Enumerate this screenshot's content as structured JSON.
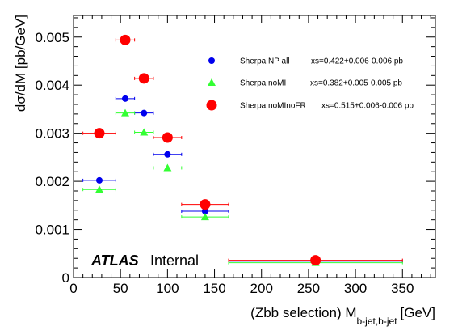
{
  "chart_data": {
    "type": "scatter",
    "xlabel": "(Zbb selection) M",
    "xlabel_sub": "b-jet,b-jet",
    "xlabel_unit": "[GeV]",
    "ylabel": "dσ/dM [pb/GeV]",
    "xlim": [
      0,
      385
    ],
    "ylim": [
      0,
      0.00545
    ],
    "x_ticks": [
      0,
      50,
      100,
      150,
      200,
      250,
      300,
      350
    ],
    "x_tick_labels": [
      "0",
      "50",
      "100",
      "150",
      "200",
      "250",
      "300",
      "350"
    ],
    "y_ticks": [
      0,
      0.001,
      0.002,
      0.003,
      0.004,
      0.005
    ],
    "y_tick_labels": [
      "0",
      "0.001",
      "0.002",
      "0.003",
      "0.004",
      "0.005"
    ],
    "grid": false,
    "legend_position": "top-right",
    "annotation": {
      "bold": "ATLAS",
      "normal": "Internal"
    },
    "series": [
      {
        "name": "Sherpa NP all",
        "xs_label": "xs=0.422+0.006-0.006 pb",
        "marker": "circle",
        "color": "#0000ee",
        "points": [
          {
            "x": 27.5,
            "xlo": 10,
            "xhi": 45,
            "y": 0.00202
          },
          {
            "x": 55,
            "xlo": 45,
            "xhi": 65,
            "y": 0.00372
          },
          {
            "x": 75,
            "xlo": 65,
            "xhi": 85,
            "y": 0.00342
          },
          {
            "x": 100,
            "xlo": 85,
            "xhi": 115,
            "y": 0.00256
          },
          {
            "x": 140,
            "xlo": 115,
            "xhi": 165,
            "y": 0.00138
          },
          {
            "x": 257.5,
            "xlo": 165,
            "xhi": 350,
            "y": 0.00034
          }
        ]
      },
      {
        "name": "Sherpa noMI",
        "xs_label": "xs=0.382+0.005-0.005 pb",
        "marker": "triangle",
        "color": "#33ff33",
        "points": [
          {
            "x": 27.5,
            "xlo": 10,
            "xhi": 45,
            "y": 0.00183
          },
          {
            "x": 55,
            "xlo": 45,
            "xhi": 65,
            "y": 0.00342
          },
          {
            "x": 75,
            "xlo": 65,
            "xhi": 85,
            "y": 0.00302
          },
          {
            "x": 100,
            "xlo": 85,
            "xhi": 115,
            "y": 0.00228
          },
          {
            "x": 140,
            "xlo": 115,
            "xhi": 165,
            "y": 0.00126
          },
          {
            "x": 257.5,
            "xlo": 165,
            "xhi": 350,
            "y": 0.00031
          }
        ]
      },
      {
        "name": "Sherpa noMInoFR",
        "xs_label": "xs=0.515+0.006-0.006 pb",
        "marker": "circle-large",
        "color": "#ff0000",
        "points": [
          {
            "x": 27.5,
            "xlo": 10,
            "xhi": 45,
            "y": 0.003
          },
          {
            "x": 55,
            "xlo": 45,
            "xhi": 65,
            "y": 0.00494
          },
          {
            "x": 75,
            "xlo": 65,
            "xhi": 85,
            "y": 0.00414
          },
          {
            "x": 100,
            "xlo": 85,
            "xhi": 115,
            "y": 0.00291
          },
          {
            "x": 140,
            "xlo": 115,
            "xhi": 165,
            "y": 0.00152
          },
          {
            "x": 257.5,
            "xlo": 165,
            "xhi": 350,
            "y": 0.00036
          }
        ]
      }
    ]
  }
}
